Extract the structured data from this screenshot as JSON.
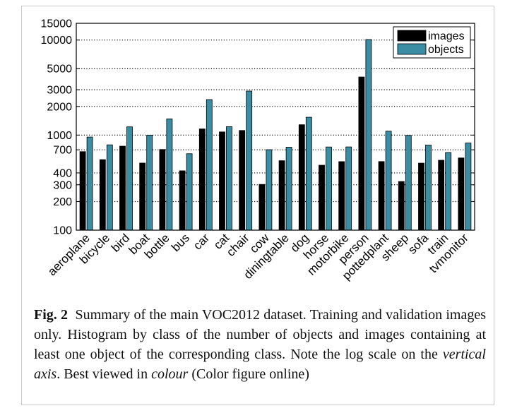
{
  "chart_data": {
    "type": "bar",
    "scale": "log",
    "ylim": [
      100,
      15000
    ],
    "yticks": [
      100,
      200,
      300,
      400,
      700,
      1000,
      2000,
      3000,
      5000,
      10000,
      15000
    ],
    "ytick_labels": [
      "100",
      "200",
      "300",
      "400",
      "700",
      "1000",
      "2000",
      "3000",
      "5000",
      "10000",
      "15000"
    ],
    "grid": "horizontal-dotted",
    "legend_position": "top-right",
    "categories": [
      "aeroplane",
      "bicycle",
      "bird",
      "boat",
      "bottle",
      "bus",
      "car",
      "cat",
      "chair",
      "cow",
      "diningtable",
      "dog",
      "horse",
      "motorbike",
      "person",
      "pottedplant",
      "sheep",
      "sofa",
      "train",
      "tvmonitor"
    ],
    "series": [
      {
        "name": "images",
        "color": "#000000",
        "values": [
          670,
          552,
          765,
          508,
          706,
          421,
          1161,
          1080,
          1119,
          303,
          538,
          1286,
          482,
          526,
          4087,
          527,
          325,
          507,
          544,
          575
        ]
      },
      {
        "name": "objects",
        "color": "#3a8da3",
        "values": [
          954,
          790,
          1221,
          999,
          1482,
          637,
          2364,
          1227,
          2906,
          702,
          747,
          1541,
          750,
          751,
          10129,
          1099,
          994,
          786,
          656,
          826
        ]
      }
    ]
  },
  "caption": {
    "label": "Fig. 2",
    "text_1": "Summary of the main VOC2012 dataset. Training and validation images only. Histogram by class of the number of objects and images containing at least one object of the corresponding class. Note the log scale on the ",
    "emph_1": "vertical axis",
    "text_2": ". Best viewed in ",
    "emph_2": "colour",
    "text_3": " (Color figure online)"
  }
}
